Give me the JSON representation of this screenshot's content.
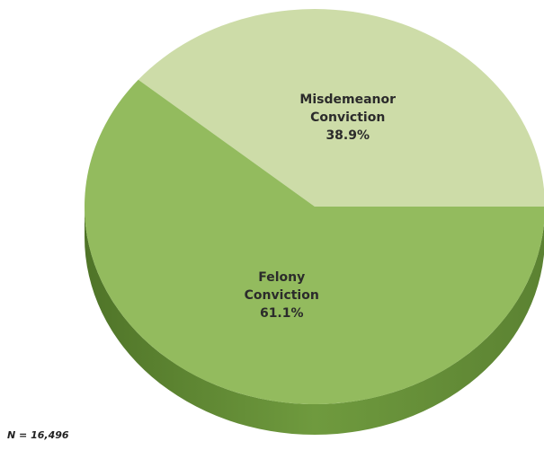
{
  "chart_data": {
    "type": "pie",
    "categories": [
      "Misdemeanor Conviction",
      "Felony Conviction"
    ],
    "values": [
      38.9,
      61.1
    ],
    "value_labels": [
      "38.9%",
      "61.1%"
    ],
    "colors": [
      "#cddca8",
      "#93bb5e"
    ],
    "annotation": "N = 16,496"
  }
}
